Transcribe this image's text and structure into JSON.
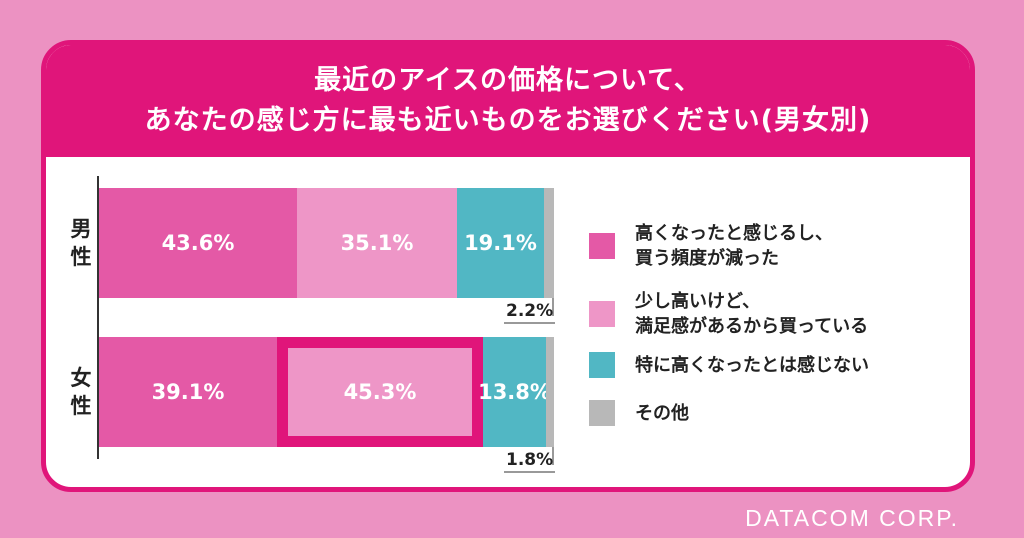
{
  "chart_data": {
    "type": "bar",
    "orientation": "horizontal",
    "stacked": true,
    "title_lines": [
      "最近のアイスの価格について、",
      "あなたの感じ方に最も近いものをお選びください(男女別)"
    ],
    "categories": [
      "男性",
      "女性"
    ],
    "series": [
      {
        "name": "高くなったと感じるし、買う頻度が減った",
        "values": [
          43.6,
          39.1
        ],
        "labels": [
          "43.6%",
          "39.1%"
        ],
        "color": "#e459a6"
      },
      {
        "name": "少し高いけど、満足感があるから買っている",
        "values": [
          35.1,
          45.3
        ],
        "labels": [
          "35.1%",
          "45.3%"
        ],
        "color": "#ee96c7"
      },
      {
        "name": "特に高くなったとは感じない",
        "values": [
          19.1,
          13.8
        ],
        "labels": [
          "19.1%",
          "13.8%"
        ],
        "color": "#51b7c4"
      },
      {
        "name": "その他",
        "values": [
          2.2,
          1.8
        ],
        "labels": [
          "2.2%",
          "1.8%"
        ],
        "color": "#b8b8b8"
      }
    ],
    "xlim": [
      0,
      100
    ],
    "highlighted": {
      "category": "女性",
      "series": "少し高いけど、満足感があるから買っている",
      "color": "#e0157a"
    },
    "legend": {
      "position": "right",
      "items": [
        {
          "lines": [
            "高くなったと感じるし、",
            "買う頻度が減った"
          ],
          "color": "#e459a6"
        },
        {
          "lines": [
            "少し高いけど、",
            "満足感があるから買っている"
          ],
          "color": "#ee96c7"
        },
        {
          "lines": [
            "特に高くなったとは感じない"
          ],
          "color": "#51b7c4"
        },
        {
          "lines": [
            "その他"
          ],
          "color": "#b8b8b8"
        }
      ]
    }
  },
  "brand": "DATACOM CORP.",
  "colors": {
    "background": "#ec92c2",
    "accent": "#e0157a",
    "card": "#ffffff"
  }
}
